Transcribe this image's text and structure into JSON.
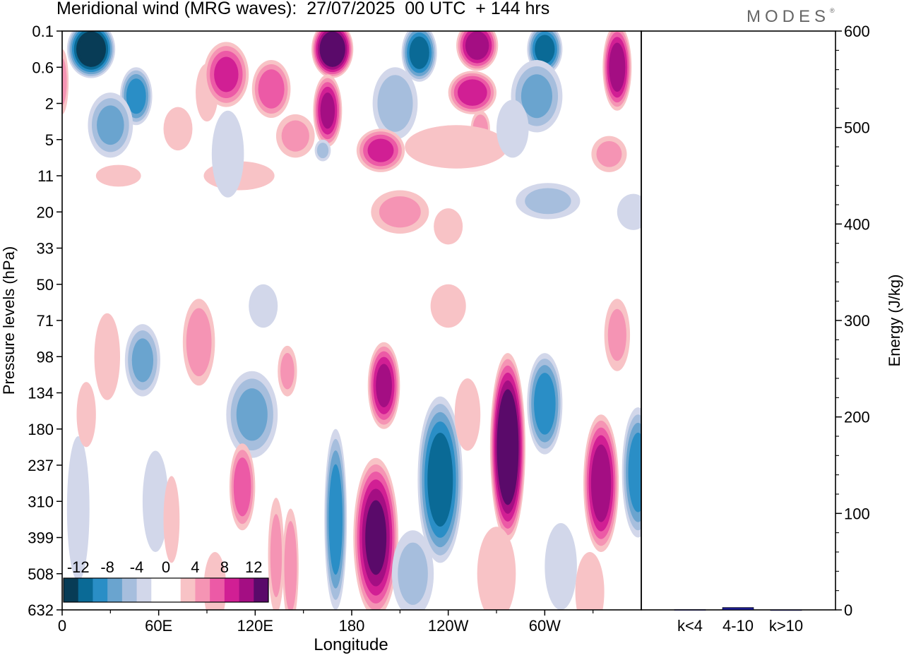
{
  "header": {
    "title": "Meridional wind (MRG waves):  27/07/2025  00 UTC  + 144 hrs",
    "brand": "MODES",
    "brand_mark": "®"
  },
  "colors": {
    "levels": [
      "#083c56",
      "#0a6a96",
      "#2a8ec6",
      "#6aa4cf",
      "#a6bedd",
      "#d2d7ea",
      "#ffffff",
      "#f8c3c6",
      "#f594b4",
      "#ec5aa6",
      "#d11f94",
      "#a40e83",
      "#5a0a6a"
    ],
    "bar": "#1a1a8c"
  },
  "chart_data": [
    {
      "type": "heatmap",
      "title": "Meridional wind (MRG waves)",
      "xlabel": "Longitude",
      "ylabel": "Pressure levels (hPa)",
      "x_ticks": [
        "0",
        "60E",
        "120E",
        "180",
        "120W",
        "60W"
      ],
      "x_tick_values": [
        0,
        60,
        120,
        180,
        240,
        300
      ],
      "xlim": [
        0,
        360
      ],
      "y_ticks": [
        "0.1",
        "0.6",
        "2",
        "5",
        "11",
        "20",
        "33",
        "50",
        "71",
        "98",
        "134",
        "180",
        "237",
        "310",
        "399",
        "508",
        "632"
      ],
      "colorbar": {
        "labels": [
          "-12",
          "-8",
          "-4",
          "0",
          "4",
          "8",
          "12"
        ],
        "levels": [
          -14,
          -12,
          -10,
          -8,
          -6,
          -4,
          -2,
          0,
          2,
          4,
          6,
          8,
          10,
          12,
          14
        ]
      },
      "features": [
        {
          "lon": 18,
          "lev": 0.5,
          "value": -15,
          "wlon": 15,
          "wlev": 0.8
        },
        {
          "lon": 46,
          "lev": 1.8,
          "value": -9,
          "wlon": 10,
          "wlev": 0.8
        },
        {
          "lon": 30,
          "lev": 2.6,
          "value": -6,
          "wlon": 14,
          "wlev": 0.9
        },
        {
          "lon": 0,
          "lev": 1.4,
          "value": 4,
          "wlon": 4,
          "wlev": 0.9
        },
        {
          "lon": 90,
          "lev": 1.7,
          "value": 3,
          "wlon": 7,
          "wlev": 0.8
        },
        {
          "lon": 72,
          "lev": 2.7,
          "value": 3,
          "wlon": 9,
          "wlev": 0.6
        },
        {
          "lon": 102,
          "lev": 1.2,
          "value": 8,
          "wlon": 14,
          "wlev": 0.9
        },
        {
          "lon": 130,
          "lev": 1.6,
          "value": 7,
          "wlon": 12,
          "wlev": 0.8
        },
        {
          "lon": 168,
          "lev": 0.5,
          "value": 15,
          "wlon": 13,
          "wlev": 0.8
        },
        {
          "lon": 165,
          "lev": 2.2,
          "value": 10,
          "wlon": 9,
          "wlev": 1.0
        },
        {
          "lon": 145,
          "lev": 2.9,
          "value": 4,
          "wlon": 12,
          "wlev": 0.6
        },
        {
          "lon": 110,
          "lev": 4.0,
          "value": 3,
          "wlon": 22,
          "wlev": 0.4
        },
        {
          "lon": 103,
          "lev": 3.4,
          "value": -3,
          "wlon": 10,
          "wlev": 1.2
        },
        {
          "lon": 162,
          "lev": 3.3,
          "value": -4,
          "wlon": 5,
          "wlev": 0.3
        },
        {
          "lon": 222,
          "lev": 0.6,
          "value": -11,
          "wlon": 11,
          "wlev": 0.8
        },
        {
          "lon": 207,
          "lev": 2.0,
          "value": -5,
          "wlon": 14,
          "wlev": 1.0
        },
        {
          "lon": 198,
          "lev": 3.3,
          "value": 8,
          "wlon": 15,
          "wlev": 0.6
        },
        {
          "lon": 258,
          "lev": 0.4,
          "value": 11,
          "wlon": 13,
          "wlev": 0.7
        },
        {
          "lon": 255,
          "lev": 1.7,
          "value": 9,
          "wlon": 15,
          "wlev": 0.6
        },
        {
          "lon": 260,
          "lev": 2.7,
          "value": 5,
          "wlon": 6,
          "wlev": 0.5
        },
        {
          "lon": 245,
          "lev": 3.2,
          "value": 3,
          "wlon": 32,
          "wlev": 0.6
        },
        {
          "lon": 300,
          "lev": 0.5,
          "value": -11,
          "wlon": 11,
          "wlev": 0.7
        },
        {
          "lon": 295,
          "lev": 1.8,
          "value": -6,
          "wlon": 16,
          "wlev": 1.0
        },
        {
          "lon": 280,
          "lev": 2.7,
          "value": -3,
          "wlon": 10,
          "wlev": 0.8
        },
        {
          "lon": 302,
          "lev": 4.7,
          "value": -4,
          "wlon": 20,
          "wlev": 0.5
        },
        {
          "lon": 345,
          "lev": 1.0,
          "value": 11,
          "wlon": 9,
          "wlev": 1.2
        },
        {
          "lon": 340,
          "lev": 3.4,
          "value": 4,
          "wlon": 11,
          "wlev": 0.5
        },
        {
          "lon": 355,
          "lev": 5.0,
          "value": -3,
          "wlon": 10,
          "wlev": 0.5
        },
        {
          "lon": 35,
          "lev": 4.0,
          "value": 3,
          "wlon": 14,
          "wlev": 0.3
        },
        {
          "lon": 210,
          "lev": 5.0,
          "value": 4,
          "wlon": 18,
          "wlev": 0.6
        },
        {
          "lon": 240,
          "lev": 5.4,
          "value": 3,
          "wlon": 9,
          "wlev": 0.5
        },
        {
          "lon": 240,
          "lev": 7.6,
          "value": 3,
          "wlon": 11,
          "wlev": 0.6
        },
        {
          "lon": 125,
          "lev": 7.6,
          "value": -2.5,
          "wlon": 9,
          "wlev": 0.6
        },
        {
          "lon": 28,
          "lev": 9.0,
          "value": 3,
          "wlon": 8,
          "wlev": 1.2
        },
        {
          "lon": 50,
          "lev": 9.1,
          "value": -6,
          "wlon": 11,
          "wlev": 1.0
        },
        {
          "lon": 85,
          "lev": 8.6,
          "value": 5,
          "wlon": 10,
          "wlev": 1.2
        },
        {
          "lon": 118,
          "lev": 10.6,
          "value": -6,
          "wlon": 16,
          "wlev": 1.2
        },
        {
          "lon": 140,
          "lev": 9.4,
          "value": 4,
          "wlon": 6,
          "wlev": 0.7
        },
        {
          "lon": 112,
          "lev": 12.6,
          "value": 7,
          "wlon": 8,
          "wlev": 1.2
        },
        {
          "lon": 170,
          "lev": 13.5,
          "value": -9,
          "wlon": 7,
          "wlev": 2.5
        },
        {
          "lon": 133,
          "lev": 14.5,
          "value": 4,
          "wlon": 5,
          "wlev": 1.6
        },
        {
          "lon": 142,
          "lev": 14.8,
          "value": 5,
          "wlon": 5,
          "wlev": 1.6
        },
        {
          "lon": 200,
          "lev": 9.8,
          "value": 10,
          "wlon": 10,
          "wlev": 1.2
        },
        {
          "lon": 195,
          "lev": 14.0,
          "value": 12,
          "wlon": 14,
          "wlev": 2.2
        },
        {
          "lon": 235,
          "lev": 12.4,
          "value": -11,
          "wlon": 14,
          "wlev": 2.3
        },
        {
          "lon": 218,
          "lev": 15.0,
          "value": -4,
          "wlon": 13,
          "wlev": 1.2
        },
        {
          "lon": 277,
          "lev": 11.5,
          "value": 15,
          "wlon": 11,
          "wlev": 2.6
        },
        {
          "lon": 300,
          "lev": 10.3,
          "value": -9,
          "wlon": 11,
          "wlev": 1.4
        },
        {
          "lon": 335,
          "lev": 12.5,
          "value": 11,
          "wlon": 11,
          "wlev": 1.9
        },
        {
          "lon": 358,
          "lev": 12.2,
          "value": -9,
          "wlon": 10,
          "wlev": 1.8
        },
        {
          "lon": 345,
          "lev": 8.4,
          "value": 4,
          "wlon": 8,
          "wlev": 1.0
        },
        {
          "lon": 252,
          "lev": 10.6,
          "value": 3,
          "wlon": 8,
          "wlev": 1.0
        },
        {
          "lon": 10,
          "lev": 13.2,
          "value": -3,
          "wlon": 7,
          "wlev": 2.0
        },
        {
          "lon": 15,
          "lev": 10.6,
          "value": 3,
          "wlon": 6,
          "wlev": 0.9
        },
        {
          "lon": 58,
          "lev": 13.0,
          "value": -2.5,
          "wlon": 8,
          "wlev": 1.4
        },
        {
          "lon": 68,
          "lev": 13.5,
          "value": 2.5,
          "wlon": 5,
          "wlev": 1.2
        },
        {
          "lon": 95,
          "lev": 15.4,
          "value": 3,
          "wlon": 7,
          "wlev": 1.0
        },
        {
          "lon": 270,
          "lev": 15.0,
          "value": 3,
          "wlon": 12,
          "wlev": 1.3
        },
        {
          "lon": 310,
          "lev": 14.8,
          "value": -3,
          "wlon": 10,
          "wlev": 1.2
        },
        {
          "lon": 328,
          "lev": 15.5,
          "value": 3,
          "wlon": 9,
          "wlev": 1.1
        }
      ]
    },
    {
      "type": "bar",
      "categories": [
        "k<4",
        "4-10",
        "k>10"
      ],
      "values": [
        0.3,
        2.5,
        0.1
      ],
      "ylabel": "Energy (J/kg)",
      "ylim": [
        0,
        600
      ],
      "y_ticks": [
        "0",
        "100",
        "200",
        "300",
        "400",
        "500",
        "600"
      ]
    }
  ]
}
